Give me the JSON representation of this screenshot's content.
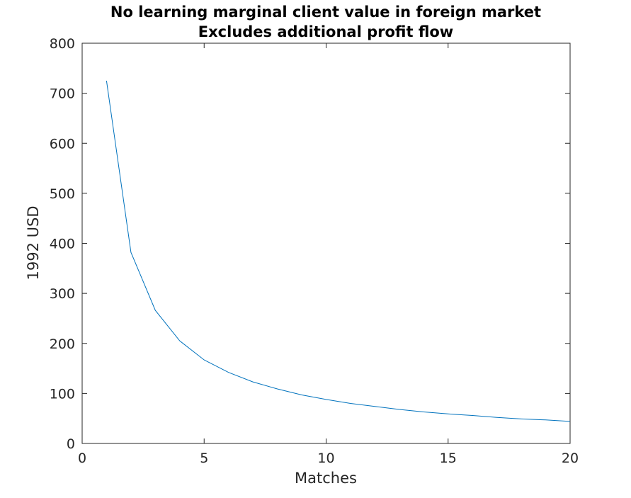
{
  "chart_data": {
    "type": "line",
    "title": "No learning marginal client value in foreign market",
    "subtitle": "Excludes additional profit flow",
    "xlabel": "Matches",
    "ylabel": "1992 USD",
    "xlim": [
      0,
      20
    ],
    "ylim": [
      0,
      800
    ],
    "xticks": [
      0,
      5,
      10,
      15,
      20
    ],
    "yticks": [
      0,
      100,
      200,
      300,
      400,
      500,
      600,
      700,
      800
    ],
    "grid": false,
    "line_color": "#0072BD",
    "series": [
      {
        "x": [
          1,
          2,
          3,
          4,
          5,
          6,
          7,
          8,
          9,
          10,
          11,
          12,
          13,
          14,
          15,
          16,
          17,
          18,
          19,
          20
        ],
        "y": [
          725,
          382,
          266,
          205,
          167,
          142,
          123,
          109,
          97,
          88,
          80,
          74,
          68,
          63,
          59,
          56,
          52,
          49,
          47,
          44
        ]
      }
    ]
  }
}
